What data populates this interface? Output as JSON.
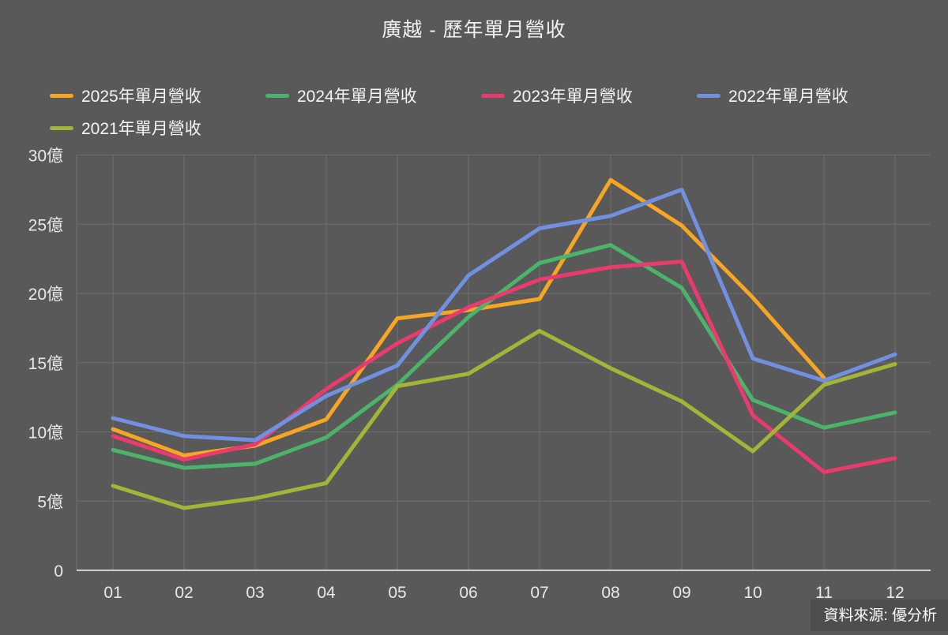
{
  "title": "廣越 - 歷年單月營收",
  "source_note": "資料來源: 優分析",
  "colors": {
    "background": "#595959",
    "gridline": "#6E6E6E",
    "axis_line": "#CFCFCF",
    "tick_label": "#E8E8E8",
    "title_text": "#F2F2F2",
    "legend_text": "#F5F5F5",
    "source_bg": "#4E4E4E"
  },
  "chart_data": {
    "type": "line",
    "title": "廣越 - 歷年單月營收",
    "x_categories": [
      "01",
      "02",
      "03",
      "04",
      "05",
      "06",
      "07",
      "08",
      "09",
      "10",
      "11",
      "12"
    ],
    "unit": "億",
    "ylim": [
      0,
      30
    ],
    "ytick_values": [
      0,
      5,
      10,
      15,
      20,
      25,
      30
    ],
    "ytick_labels": [
      "0",
      "5億",
      "10億",
      "15億",
      "20億",
      "25億",
      "30億"
    ],
    "grid": true,
    "legend_position": "top-left",
    "series": [
      {
        "name": "2025年單月營收",
        "color": "#F6A623",
        "values": [
          10.2,
          8.3,
          9.0,
          10.9,
          18.2,
          18.8,
          19.6,
          28.2,
          24.9,
          19.7,
          13.9,
          null
        ]
      },
      {
        "name": "2024年單月營收",
        "color": "#4CB36A",
        "values": [
          8.7,
          7.4,
          7.7,
          9.6,
          13.4,
          18.3,
          22.2,
          23.5,
          20.4,
          12.3,
          10.3,
          11.4
        ]
      },
      {
        "name": "2023年單月營收",
        "color": "#EA3A6E",
        "values": [
          9.7,
          8.0,
          9.1,
          13.1,
          16.4,
          19.0,
          21.0,
          21.9,
          22.3,
          11.2,
          7.1,
          8.1
        ]
      },
      {
        "name": "2022年單月營收",
        "color": "#7191E0",
        "values": [
          11.0,
          9.7,
          9.4,
          12.6,
          14.8,
          21.3,
          24.7,
          25.6,
          27.5,
          15.3,
          13.7,
          15.6
        ]
      },
      {
        "name": "2021年單月營收",
        "color": "#A3B438",
        "values": [
          6.1,
          4.5,
          5.2,
          6.3,
          13.3,
          14.2,
          17.3,
          14.6,
          12.2,
          8.6,
          13.4,
          14.9
        ]
      }
    ]
  }
}
